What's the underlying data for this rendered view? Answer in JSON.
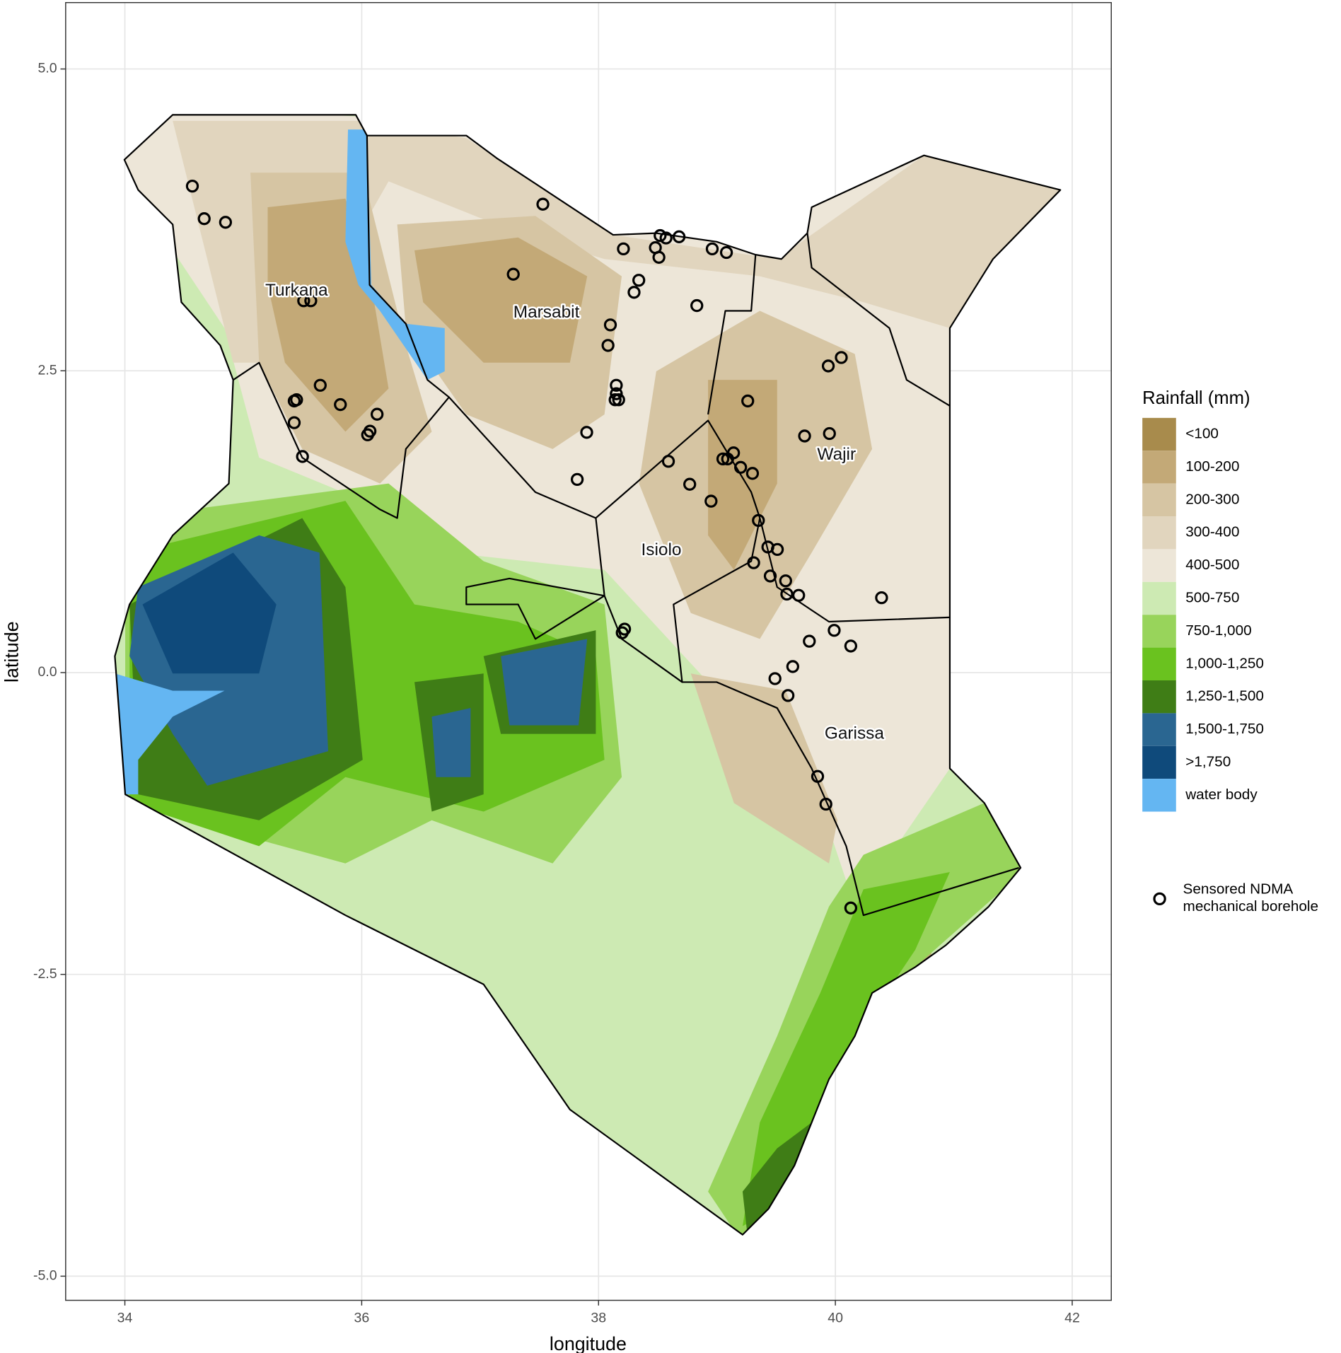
{
  "chart_data": {
    "type": "scatter",
    "x_label": "longitude",
    "y_label": "latitude",
    "xlim": [
      33.5,
      42.33
    ],
    "ylim": [
      -5.2,
      5.55
    ],
    "xticks": [
      34,
      36,
      38,
      40,
      42
    ],
    "yticks": [
      {
        "value": -5,
        "label": "-5.0"
      },
      {
        "value": -2.5,
        "label": "-2.5"
      },
      {
        "value": 0,
        "label": "0.0"
      },
      {
        "value": 2.5,
        "label": "2.5"
      },
      {
        "value": 5,
        "label": "5.0"
      }
    ],
    "grid": true,
    "legend_position": "right",
    "legend": {
      "title": "Rainfall (mm)",
      "items": [
        {
          "label": "<100",
          "color": "#a88b4c"
        },
        {
          "label": "100-200",
          "color": "#c3a977"
        },
        {
          "label": "200-300",
          "color": "#d6c5a3"
        },
        {
          "label": "300-400",
          "color": "#e1d5be"
        },
        {
          "label": "400-500",
          "color": "#ede6d8"
        },
        {
          "label": "500-750",
          "color": "#cdeab3"
        },
        {
          "label": "750-1,000",
          "color": "#98d45b"
        },
        {
          "label": "1,000-1,250",
          "color": "#6ac21f"
        },
        {
          "label": "1,250-1,500",
          "color": "#3f7d16"
        },
        {
          "label": "1,500-1,750",
          "color": "#2a6691"
        },
        {
          "label": ">1,750",
          "color": "#0f4a7b"
        },
        {
          "label": "water body",
          "color": "#64b6f2"
        }
      ]
    },
    "annotations": [
      {
        "text": "Turkana",
        "x": 35.45,
        "y": 3.16
      },
      {
        "text": "Marsabit",
        "x": 37.56,
        "y": 2.98
      },
      {
        "text": "Wajir",
        "x": 40.01,
        "y": 1.8
      },
      {
        "text": "Isiolo",
        "x": 38.53,
        "y": 1.01
      },
      {
        "text": "Garissa",
        "x": 40.16,
        "y": -0.51
      }
    ],
    "series": [
      {
        "name": "Sensored NDMA mechanical borehole",
        "color": "#000000",
        "x": [
          34.57,
          34.67,
          34.85,
          37.53,
          37.28,
          38.21,
          38.34,
          38.3,
          38.52,
          38.57,
          38.68,
          38.48,
          38.51,
          38.96,
          39.08,
          38.83,
          38.1,
          38.08,
          38.15,
          38.15,
          38.17,
          38.14,
          37.9,
          37.82,
          38.59,
          38.77,
          38.95,
          39.05,
          39.09,
          39.14,
          39.2,
          39.3,
          39.26,
          39.94,
          40.05,
          39.74,
          39.95,
          35.51,
          35.57,
          35.65,
          35.45,
          35.43,
          35.43,
          35.82,
          36.13,
          36.05,
          36.07,
          35.5,
          39.35,
          39.43,
          39.51,
          39.31,
          39.45,
          39.58,
          39.59,
          39.69,
          40.39,
          39.78,
          39.99,
          40.13,
          38.2,
          38.22,
          39.64,
          39.49,
          39.6,
          39.85,
          39.92,
          40.13
        ],
        "values": [
          4.03,
          3.76,
          3.73,
          3.88,
          3.3,
          3.51,
          3.25,
          3.15,
          3.62,
          3.6,
          3.61,
          3.52,
          3.44,
          3.51,
          3.48,
          3.04,
          2.88,
          2.71,
          2.38,
          2.31,
          2.26,
          2.26,
          1.99,
          1.6,
          1.75,
          1.56,
          1.42,
          1.77,
          1.77,
          1.82,
          1.7,
          1.65,
          2.25,
          2.54,
          2.61,
          1.96,
          1.98,
          3.08,
          3.08,
          2.38,
          2.26,
          2.25,
          2.07,
          2.22,
          2.14,
          1.97,
          2.0,
          1.79,
          1.26,
          1.04,
          1.02,
          0.91,
          0.8,
          0.76,
          0.65,
          0.64,
          0.62,
          0.26,
          0.35,
          0.22,
          0.33,
          0.36,
          0.05,
          -0.05,
          -0.19,
          -0.86,
          -1.09,
          -1.95
        ]
      }
    ]
  }
}
